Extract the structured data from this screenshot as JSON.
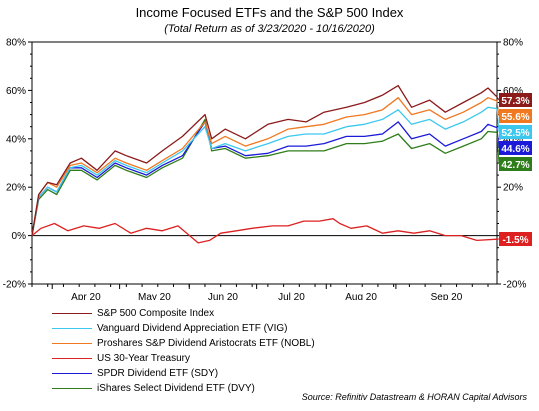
{
  "chart_data": {
    "type": "line",
    "title": "Income Focused ETFs and the S&P 500 Index",
    "subtitle": "(Total Return as of 3/23/2020 - 10/16/2020)",
    "x_tick_labels": [
      "Apr 20",
      "May 20",
      "Jun 20",
      "Jul 20",
      "Aug 20",
      "Sep 20"
    ],
    "x_tick_dates": [
      "2020-04-01",
      "2020-05-01",
      "2020-06-01",
      "2020-07-01",
      "2020-08-01",
      "2020-09-01"
    ],
    "x_range": [
      "2020-03-23",
      "2020-10-16"
    ],
    "ylim": [
      -20,
      80
    ],
    "y_ticks": [
      -20,
      0,
      20,
      40,
      60,
      80
    ],
    "y_tick_labels": [
      "-20%",
      "0%",
      "20%",
      "40%",
      "60%",
      "80%"
    ],
    "grid": false,
    "zero_line": true,
    "legend_position": "bottom",
    "series": [
      {
        "name": "S&P 500 Composite Index",
        "color": "#8b1a1a",
        "end_label": "57.3%",
        "points": [
          [
            "2020-03-23",
            0
          ],
          [
            "2020-03-26",
            17
          ],
          [
            "2020-03-30",
            22
          ],
          [
            "2020-04-03",
            21
          ],
          [
            "2020-04-09",
            30
          ],
          [
            "2020-04-14",
            32
          ],
          [
            "2020-04-21",
            27
          ],
          [
            "2020-04-29",
            35
          ],
          [
            "2020-05-04",
            33
          ],
          [
            "2020-05-13",
            30
          ],
          [
            "2020-05-20",
            35
          ],
          [
            "2020-05-29",
            41
          ],
          [
            "2020-06-08",
            50
          ],
          [
            "2020-06-11",
            40
          ],
          [
            "2020-06-17",
            44
          ],
          [
            "2020-06-26",
            40
          ],
          [
            "2020-07-06",
            46
          ],
          [
            "2020-07-15",
            48
          ],
          [
            "2020-07-23",
            47
          ],
          [
            "2020-07-31",
            51
          ],
          [
            "2020-08-10",
            53
          ],
          [
            "2020-08-18",
            55
          ],
          [
            "2020-08-26",
            58
          ],
          [
            "2020-09-02",
            62
          ],
          [
            "2020-09-08",
            53
          ],
          [
            "2020-09-16",
            56
          ],
          [
            "2020-09-23",
            51
          ],
          [
            "2020-10-01",
            55
          ],
          [
            "2020-10-09",
            59
          ],
          [
            "2020-10-12",
            61
          ],
          [
            "2020-10-16",
            57.3
          ]
        ]
      },
      {
        "name": "Vanguard Dividend Appreciation ETF (VIG)",
        "color": "#3cc8ee",
        "end_label": "52.5%",
        "points": [
          [
            "2020-03-23",
            0
          ],
          [
            "2020-03-26",
            16
          ],
          [
            "2020-03-30",
            20
          ],
          [
            "2020-04-03",
            18
          ],
          [
            "2020-04-09",
            28
          ],
          [
            "2020-04-14",
            29
          ],
          [
            "2020-04-21",
            25
          ],
          [
            "2020-04-29",
            31
          ],
          [
            "2020-05-04",
            29
          ],
          [
            "2020-05-13",
            26
          ],
          [
            "2020-05-20",
            30
          ],
          [
            "2020-05-29",
            35
          ],
          [
            "2020-06-08",
            45
          ],
          [
            "2020-06-11",
            36
          ],
          [
            "2020-06-17",
            38
          ],
          [
            "2020-06-26",
            35
          ],
          [
            "2020-07-06",
            38
          ],
          [
            "2020-07-15",
            41
          ],
          [
            "2020-07-23",
            42
          ],
          [
            "2020-07-31",
            42
          ],
          [
            "2020-08-10",
            45
          ],
          [
            "2020-08-18",
            46
          ],
          [
            "2020-08-26",
            48
          ],
          [
            "2020-09-02",
            52
          ],
          [
            "2020-09-08",
            46
          ],
          [
            "2020-09-16",
            48
          ],
          [
            "2020-09-23",
            44
          ],
          [
            "2020-10-01",
            47
          ],
          [
            "2020-10-09",
            51
          ],
          [
            "2020-10-12",
            53
          ],
          [
            "2020-10-16",
            52.5
          ]
        ]
      },
      {
        "name": "Proshares S&P Dividend Aristocrats ETF (NOBL)",
        "color": "#f07820",
        "end_label": "55.6%",
        "points": [
          [
            "2020-03-23",
            0
          ],
          [
            "2020-03-26",
            17
          ],
          [
            "2020-03-30",
            22
          ],
          [
            "2020-04-03",
            20
          ],
          [
            "2020-04-09",
            29
          ],
          [
            "2020-04-14",
            30
          ],
          [
            "2020-04-21",
            26
          ],
          [
            "2020-04-29",
            32
          ],
          [
            "2020-05-04",
            30
          ],
          [
            "2020-05-13",
            27
          ],
          [
            "2020-05-20",
            31
          ],
          [
            "2020-05-29",
            36
          ],
          [
            "2020-06-08",
            47
          ],
          [
            "2020-06-11",
            38
          ],
          [
            "2020-06-17",
            41
          ],
          [
            "2020-06-26",
            37
          ],
          [
            "2020-07-06",
            40
          ],
          [
            "2020-07-15",
            44
          ],
          [
            "2020-07-23",
            45
          ],
          [
            "2020-07-31",
            46
          ],
          [
            "2020-08-10",
            49
          ],
          [
            "2020-08-18",
            50
          ],
          [
            "2020-08-26",
            52
          ],
          [
            "2020-09-02",
            57
          ],
          [
            "2020-09-08",
            50
          ],
          [
            "2020-09-16",
            52
          ],
          [
            "2020-09-23",
            48
          ],
          [
            "2020-10-01",
            51
          ],
          [
            "2020-10-09",
            55
          ],
          [
            "2020-10-12",
            57
          ],
          [
            "2020-10-16",
            55.6
          ]
        ]
      },
      {
        "name": "US 30-Year Treasury",
        "color": "#dd2020",
        "end_label": "-1.5%",
        "points": [
          [
            "2020-03-23",
            0
          ],
          [
            "2020-03-27",
            3
          ],
          [
            "2020-04-02",
            5
          ],
          [
            "2020-04-08",
            2
          ],
          [
            "2020-04-15",
            4
          ],
          [
            "2020-04-22",
            3
          ],
          [
            "2020-04-29",
            5
          ],
          [
            "2020-05-06",
            1
          ],
          [
            "2020-05-13",
            3
          ],
          [
            "2020-05-20",
            2
          ],
          [
            "2020-05-27",
            4
          ],
          [
            "2020-06-05",
            -3
          ],
          [
            "2020-06-10",
            -2
          ],
          [
            "2020-06-15",
            1
          ],
          [
            "2020-06-22",
            2
          ],
          [
            "2020-06-29",
            3
          ],
          [
            "2020-07-08",
            4
          ],
          [
            "2020-07-15",
            4
          ],
          [
            "2020-07-22",
            6
          ],
          [
            "2020-07-29",
            6
          ],
          [
            "2020-08-04",
            7
          ],
          [
            "2020-08-07",
            5
          ],
          [
            "2020-08-12",
            3
          ],
          [
            "2020-08-19",
            4
          ],
          [
            "2020-08-26",
            1
          ],
          [
            "2020-09-02",
            2
          ],
          [
            "2020-09-09",
            1
          ],
          [
            "2020-09-16",
            2
          ],
          [
            "2020-09-23",
            0
          ],
          [
            "2020-09-30",
            0
          ],
          [
            "2020-10-07",
            -2
          ],
          [
            "2020-10-16",
            -1.5
          ]
        ]
      },
      {
        "name": "SPDR Dividend ETF (SDY)",
        "color": "#1a1ad8",
        "end_label": "44.6%",
        "points": [
          [
            "2020-03-23",
            0
          ],
          [
            "2020-03-26",
            16
          ],
          [
            "2020-03-30",
            20
          ],
          [
            "2020-04-03",
            18
          ],
          [
            "2020-04-09",
            28
          ],
          [
            "2020-04-14",
            28
          ],
          [
            "2020-04-21",
            24
          ],
          [
            "2020-04-29",
            30
          ],
          [
            "2020-05-04",
            28
          ],
          [
            "2020-05-13",
            25
          ],
          [
            "2020-05-20",
            29
          ],
          [
            "2020-05-29",
            33
          ],
          [
            "2020-06-08",
            47
          ],
          [
            "2020-06-11",
            36
          ],
          [
            "2020-06-17",
            37
          ],
          [
            "2020-06-26",
            33
          ],
          [
            "2020-07-06",
            34
          ],
          [
            "2020-07-15",
            37
          ],
          [
            "2020-07-23",
            37
          ],
          [
            "2020-07-31",
            38
          ],
          [
            "2020-08-10",
            41
          ],
          [
            "2020-08-18",
            41
          ],
          [
            "2020-08-26",
            42
          ],
          [
            "2020-09-02",
            47
          ],
          [
            "2020-09-08",
            40
          ],
          [
            "2020-09-16",
            42
          ],
          [
            "2020-09-23",
            37
          ],
          [
            "2020-10-01",
            40
          ],
          [
            "2020-10-09",
            43
          ],
          [
            "2020-10-12",
            46
          ],
          [
            "2020-10-16",
            44.6
          ]
        ]
      },
      {
        "name": "iShares Select Dividend ETF (DVY)",
        "color": "#2e7d1a",
        "end_label": "42.7%",
        "points": [
          [
            "2020-03-23",
            0
          ],
          [
            "2020-03-26",
            15
          ],
          [
            "2020-03-30",
            19
          ],
          [
            "2020-04-03",
            17
          ],
          [
            "2020-04-09",
            27
          ],
          [
            "2020-04-14",
            27
          ],
          [
            "2020-04-21",
            23
          ],
          [
            "2020-04-29",
            29
          ],
          [
            "2020-05-04",
            27
          ],
          [
            "2020-05-13",
            24
          ],
          [
            "2020-05-20",
            28
          ],
          [
            "2020-05-29",
            32
          ],
          [
            "2020-06-08",
            48
          ],
          [
            "2020-06-11",
            35
          ],
          [
            "2020-06-17",
            36
          ],
          [
            "2020-06-26",
            32
          ],
          [
            "2020-07-06",
            33
          ],
          [
            "2020-07-15",
            35
          ],
          [
            "2020-07-23",
            35
          ],
          [
            "2020-07-31",
            35
          ],
          [
            "2020-08-10",
            38
          ],
          [
            "2020-08-18",
            38
          ],
          [
            "2020-08-26",
            39
          ],
          [
            "2020-09-02",
            42
          ],
          [
            "2020-09-08",
            36
          ],
          [
            "2020-09-16",
            38
          ],
          [
            "2020-09-23",
            34
          ],
          [
            "2020-10-01",
            37
          ],
          [
            "2020-10-09",
            40
          ],
          [
            "2020-10-12",
            43
          ],
          [
            "2020-10-16",
            42.7
          ]
        ]
      }
    ],
    "label_order": [
      "57.3%",
      "55.6%",
      "52.5%",
      "44.6%",
      "42.7%",
      "-1.5%"
    ]
  },
  "source_note": "Source: Refinitiv Datastream & HORAN Capital Advisors"
}
